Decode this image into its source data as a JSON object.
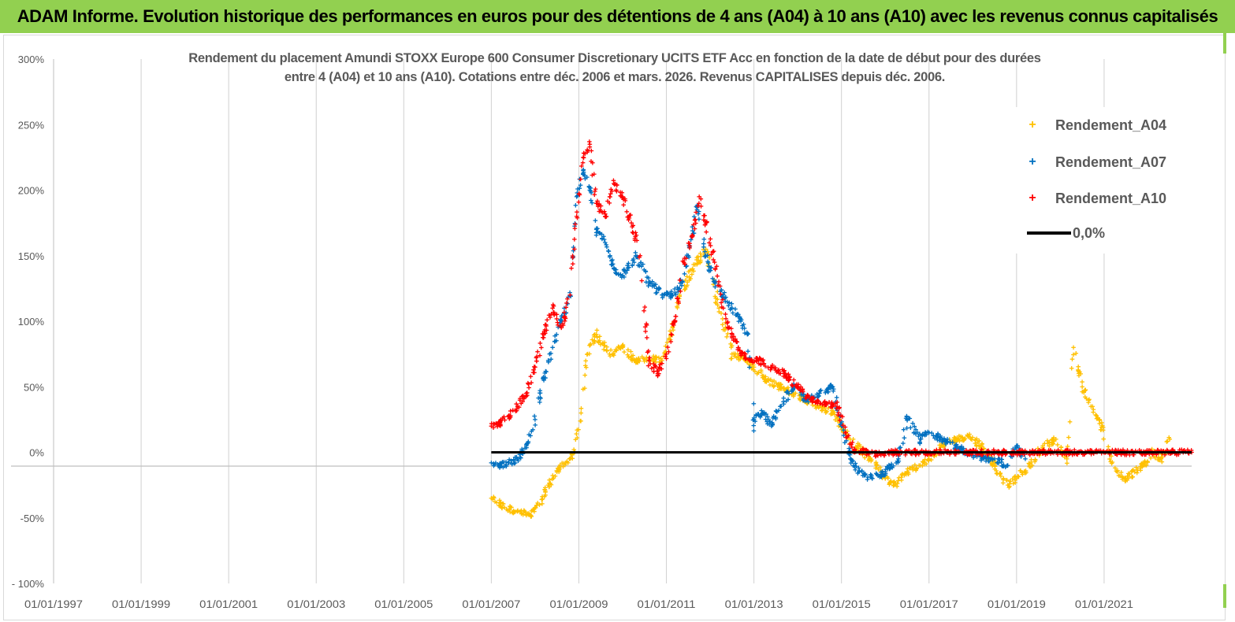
{
  "banner": {
    "title": "ADAM Informe. Evolution historique des performances en euros pour des détentions de 4 ans (A04) à 10 ans (A10) avec les revenus connus capitalisés"
  },
  "colors": {
    "banner_bg": "#92d050",
    "a04": "#ffc000",
    "a07": "#0070c0",
    "a10": "#ff0000",
    "zero_line": "#000000",
    "axis_text": "#595959"
  },
  "chart_data": {
    "type": "scatter",
    "title_line1": "Rendement du placement Amundi STOXX Europe 600 Consumer Discretionary UCITS ETF Acc en fonction de la date de début pour des durées",
    "title_line2": "entre 4 (A04) et 10 ans (A10). Cotations entre déc. 2006 et mars. 2026. Revenus CAPITALISES depuis déc. 2006.",
    "x_axis_type": "date",
    "xlim": [
      "1997-01-01",
      "2023-01-01"
    ],
    "ylim": [
      -100,
      300
    ],
    "y_ticks": [
      -100,
      -50,
      0,
      50,
      100,
      150,
      200,
      250,
      300
    ],
    "y_tick_labels": [
      "- 100%",
      "-50%",
      "0%",
      "50%",
      "100%",
      "150%",
      "200%",
      "250%",
      "300%"
    ],
    "x_ticks": [
      "1997-01-01",
      "1999-01-01",
      "2001-01-01",
      "2003-01-01",
      "2005-01-01",
      "2007-01-01",
      "2009-01-01",
      "2011-01-01",
      "2013-01-01",
      "2015-01-01",
      "2017-01-01",
      "2019-01-01",
      "2021-01-01"
    ],
    "x_tick_labels": [
      "01/01/1997",
      "01/01/1999",
      "01/01/2001",
      "01/01/2003",
      "01/01/2005",
      "01/01/2007",
      "01/01/2009",
      "01/01/2011",
      "01/01/2013",
      "01/01/2015",
      "01/01/2017",
      "01/01/2019",
      "01/01/2021"
    ],
    "series": [
      {
        "name": "Rendement_A04",
        "color": "#ffc000",
        "x": [
          2007.0,
          2007.3,
          2007.6,
          2007.9,
          2008.1,
          2008.3,
          2008.5,
          2008.7,
          2008.9,
          2009.05,
          2009.2,
          2009.4,
          2009.7,
          2010.0,
          2010.3,
          2010.6,
          2010.9,
          2011.1,
          2011.3,
          2011.6,
          2011.9,
          2012.2,
          2012.5,
          2012.8,
          2013.0,
          2013.3,
          2013.6,
          2013.9,
          2014.2,
          2014.5,
          2014.8,
          2015.0,
          2015.2,
          2015.5,
          2015.8,
          2016.0,
          2016.2,
          2016.5,
          2016.8,
          2017.0,
          2017.3,
          2017.6,
          2017.9,
          2018.2,
          2018.5,
          2018.8,
          2019.0,
          2019.3,
          2019.6,
          2019.9,
          2020.05,
          2020.15,
          2020.3,
          2020.5,
          2020.7,
          2020.9,
          2021.1,
          2021.3,
          2021.5,
          2021.7,
          2021.9,
          2022.1,
          2022.3,
          2022.5
        ],
        "values": [
          -35,
          -42,
          -45,
          -48,
          -40,
          -25,
          -15,
          -8,
          0,
          30,
          75,
          90,
          75,
          80,
          70,
          72,
          70,
          90,
          120,
          140,
          155,
          110,
          75,
          70,
          65,
          55,
          50,
          45,
          40,
          35,
          30,
          20,
          10,
          0,
          -10,
          -20,
          -25,
          -15,
          -10,
          -5,
          5,
          10,
          12,
          5,
          -10,
          -25,
          -20,
          -10,
          5,
          10,
          0,
          -5,
          80,
          50,
          35,
          25,
          0,
          -15,
          -20,
          -15,
          -10,
          0,
          -5,
          10
        ]
      },
      {
        "name": "Rendement_A07",
        "color": "#0070c0",
        "x": [
          2007.0,
          2007.2,
          2007.4,
          2007.6,
          2007.8,
          2008.0,
          2008.2,
          2008.4,
          2008.6,
          2008.8,
          2008.95,
          2009.1,
          2009.25,
          2009.4,
          2009.6,
          2009.8,
          2010.0,
          2010.3,
          2010.6,
          2010.9,
          2011.1,
          2011.3,
          2011.5,
          2011.7,
          2011.9,
          2012.1,
          2012.3,
          2012.5,
          2012.7,
          2012.85,
          2013.0,
          2013.2,
          2013.4,
          2013.6,
          2013.9,
          2014.2,
          2014.5,
          2014.8,
          2015.0,
          2015.2,
          2015.4,
          2015.7,
          2016.0,
          2016.3,
          2016.5,
          2016.8,
          2017.0,
          2017.3,
          2017.6,
          2017.9,
          2018.2,
          2018.5,
          2018.8,
          2019.0,
          2019.2
        ],
        "values": [
          -8,
          -10,
          -8,
          -5,
          5,
          25,
          55,
          80,
          100,
          120,
          195,
          215,
          200,
          170,
          160,
          140,
          135,
          150,
          130,
          120,
          120,
          125,
          150,
          185,
          150,
          130,
          120,
          110,
          100,
          90,
          25,
          30,
          20,
          35,
          50,
          40,
          45,
          50,
          20,
          -5,
          -15,
          -20,
          -15,
          -5,
          25,
          10,
          15,
          10,
          5,
          0,
          -5,
          -5,
          -10,
          5,
          -5
        ]
      },
      {
        "name": "Rendement_A10",
        "color": "#ff0000",
        "x": [
          2007.0,
          2007.2,
          2007.4,
          2007.6,
          2007.8,
          2008.0,
          2008.2,
          2008.4,
          2008.6,
          2008.8,
          2008.95,
          2009.1,
          2009.25,
          2009.4,
          2009.6,
          2009.8,
          2010.0,
          2010.2,
          2010.4,
          2010.6,
          2010.8,
          2011.0,
          2011.2,
          2011.4,
          2011.6,
          2011.75,
          2011.9,
          2012.1,
          2012.3,
          2012.5,
          2012.7,
          2012.9,
          2013.1,
          2013.4,
          2013.7,
          2014.0,
          2014.3,
          2014.6,
          2014.9,
          2015.1,
          2015.3,
          2015.6,
          2015.9,
          2016.2,
          2016.6,
          2017.0,
          2017.5,
          2018.0,
          2018.5,
          2019.0,
          2019.5,
          2020.0,
          2020.5,
          2021.0,
          2021.5,
          2022.0,
          2022.5,
          2023.0
        ],
        "values": [
          20,
          22,
          28,
          35,
          45,
          65,
          90,
          110,
          95,
          120,
          180,
          225,
          235,
          190,
          180,
          205,
          195,
          175,
          150,
          70,
          60,
          75,
          100,
          145,
          165,
          195,
          175,
          145,
          110,
          90,
          75,
          70,
          70,
          65,
          60,
          50,
          40,
          38,
          35,
          15,
          2,
          0,
          -2,
          0,
          0,
          0,
          0,
          0,
          0,
          0,
          0,
          0,
          0,
          0,
          0,
          0,
          0,
          0
        ]
      }
    ],
    "zero_line": {
      "name": "0,0%",
      "value": 0,
      "x_start": "2007-01-01",
      "x_end": "2023-01-01"
    },
    "legend_position": "top-right",
    "legend_entries": [
      "Rendement_A04",
      "Rendement_A07",
      "Rendement_A10",
      "0,0%"
    ]
  }
}
